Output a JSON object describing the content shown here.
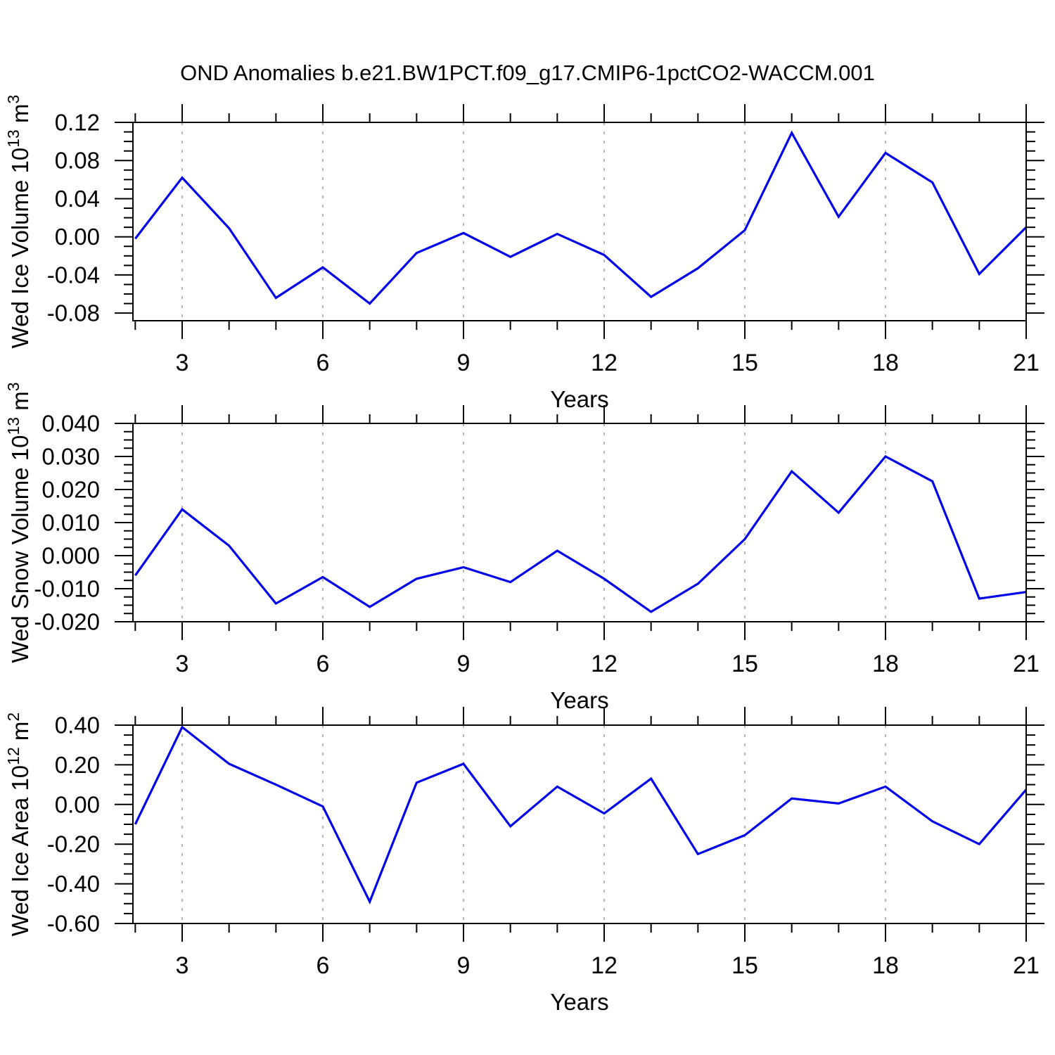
{
  "title": "OND Anomalies b.e21.BW1PCT.f09_g17.CMIP6-1pctCO2-WACCM.001",
  "colors": {
    "line": "#0000eb",
    "grid": "#878787",
    "axis": "#000000",
    "background": "#ffffff"
  },
  "x_axis": {
    "label": "Years",
    "range": [
      1.95,
      21.0
    ],
    "major_ticks": [
      3,
      6,
      9,
      12,
      15,
      18,
      21
    ],
    "major_tick_labels": [
      "3",
      "6",
      "9",
      "12",
      "15",
      "18",
      "21"
    ],
    "minor_tick_years": [
      2,
      3,
      4,
      5,
      6,
      7,
      8,
      9,
      10,
      11,
      12,
      13,
      14,
      15,
      16,
      17,
      18,
      19,
      20,
      21
    ],
    "grid_years": [
      3,
      6,
      9,
      12,
      15,
      18
    ]
  },
  "chart_data": [
    {
      "type": "line",
      "name": "ice-volume",
      "ylabel": {
        "text": "Wed Ice Volume 10",
        "sup": "13",
        "unit": " m",
        "unit_sup": "3"
      },
      "ylim": [
        -0.088,
        0.12
      ],
      "ytick_values": [
        0.12,
        0.08,
        0.04,
        0.0,
        -0.04,
        -0.08
      ],
      "ytick_labels": [
        "0.12",
        "0.08",
        "0.04",
        "0.00",
        "-0.04",
        "-0.08"
      ],
      "minor_step": 0.01,
      "x": [
        2,
        3,
        4,
        5,
        6,
        7,
        8,
        9,
        10,
        11,
        12,
        13,
        14,
        15,
        16,
        17,
        18,
        19,
        20,
        21
      ],
      "values": [
        -0.002,
        0.062,
        0.009,
        -0.064,
        -0.032,
        -0.07,
        -0.017,
        0.004,
        -0.021,
        0.003,
        -0.019,
        -0.063,
        -0.033,
        0.007,
        0.109,
        0.021,
        0.088,
        0.057,
        -0.039,
        0.01
      ]
    },
    {
      "type": "line",
      "name": "snow-volume",
      "ylabel": {
        "text": "Wed Snow Volume 10",
        "sup": "13",
        "unit": " m",
        "unit_sup": "3"
      },
      "ylim": [
        -0.02,
        0.04
      ],
      "ytick_values": [
        0.04,
        0.03,
        0.02,
        0.01,
        0.0,
        -0.01,
        -0.02
      ],
      "ytick_labels": [
        "0.040",
        "0.030",
        "0.020",
        "0.010",
        "0.000",
        "-0.010",
        "-0.020"
      ],
      "minor_step": 0.0025,
      "x": [
        2,
        3,
        4,
        5,
        6,
        7,
        8,
        9,
        10,
        11,
        12,
        13,
        14,
        15,
        16,
        17,
        18,
        19,
        20,
        21
      ],
      "values": [
        -0.006,
        0.014,
        0.003,
        -0.0145,
        -0.0065,
        -0.0155,
        -0.007,
        -0.0035,
        -0.008,
        0.0015,
        -0.007,
        -0.017,
        -0.0085,
        0.005,
        0.0255,
        0.013,
        0.03,
        0.0225,
        -0.013,
        -0.011
      ]
    },
    {
      "type": "line",
      "name": "ice-area",
      "ylabel": {
        "text": "Wed Ice Area 10",
        "sup": "12",
        "unit": " m",
        "unit_sup": "2"
      },
      "ylim": [
        -0.6,
        0.4
      ],
      "ytick_values": [
        0.4,
        0.2,
        0.0,
        -0.2,
        -0.4,
        -0.6
      ],
      "ytick_labels": [
        "0.40",
        "0.20",
        "0.00",
        "-0.20",
        "-0.40",
        "-0.60"
      ],
      "minor_step": 0.05,
      "x": [
        2,
        3,
        4,
        5,
        6,
        7,
        8,
        9,
        10,
        11,
        12,
        13,
        14,
        15,
        16,
        17,
        18,
        19,
        20,
        21
      ],
      "values": [
        -0.1,
        0.39,
        0.205,
        0.1,
        -0.01,
        -0.49,
        0.11,
        0.205,
        -0.11,
        0.09,
        -0.045,
        0.13,
        -0.25,
        -0.155,
        0.03,
        0.005,
        0.09,
        -0.085,
        -0.2,
        0.075
      ]
    }
  ]
}
